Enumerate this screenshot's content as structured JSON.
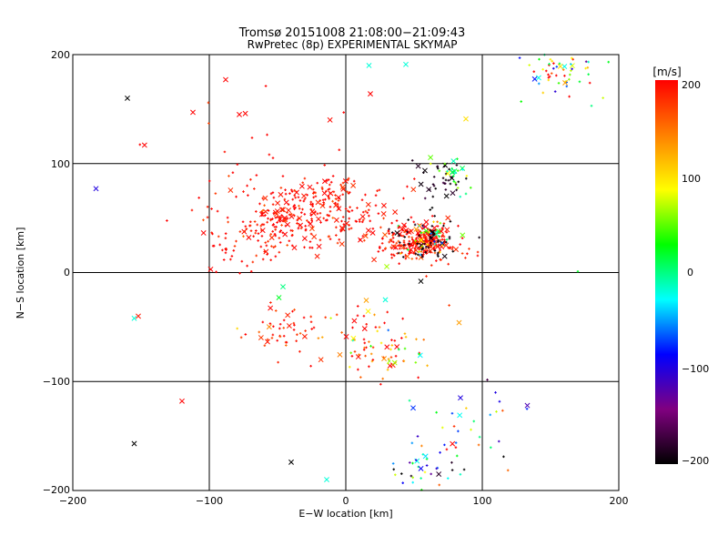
{
  "chart_data": {
    "type": "scatter",
    "title": "Tromsø 20151008 21:08:00−21:09:43",
    "subtitle": "RwPretec (8p) EXPERIMENTAL SKYMAP",
    "xlabel": "E−W location [km]",
    "ylabel": "N−S location [km]",
    "xlim": [
      -200,
      200
    ],
    "ylim": [
      -200,
      200
    ],
    "xticks": [
      "−200",
      "−100",
      "0",
      "100",
      "200"
    ],
    "yticks": [
      "200",
      "100",
      "0",
      "−100",
      "−200"
    ],
    "grid": true,
    "colorbar": {
      "label": "[m/s]",
      "range": [
        -200,
        200
      ],
      "ticks": [
        "200",
        "100",
        "0",
        "−100",
        "−200"
      ],
      "colormap": [
        "#000000",
        "#800080",
        "#0000ff",
        "#00ffff",
        "#00ff00",
        "#ffff00",
        "#ff8000",
        "#ff0000"
      ]
    },
    "clusters": [
      {
        "cx": 55,
        "cy": 28,
        "sx": 14,
        "sy": 8,
        "n": 260,
        "vmean": 195,
        "vsd": 20
      },
      {
        "cx": 60,
        "cy": 28,
        "sx": 12,
        "sy": 8,
        "n": 60,
        "vmean": -195,
        "vsd": 5
      },
      {
        "cx": 58,
        "cy": 32,
        "sx": 14,
        "sy": 10,
        "n": 40,
        "vmean": 60,
        "vsd": 80
      },
      {
        "cx": 72,
        "cy": 85,
        "sx": 10,
        "sy": 12,
        "n": 40,
        "vmean": -190,
        "vsd": 10
      },
      {
        "cx": 80,
        "cy": 90,
        "sx": 8,
        "sy": 8,
        "n": 25,
        "vmean": 40,
        "vsd": 60
      },
      {
        "cx": -45,
        "cy": 45,
        "sx": 14,
        "sy": 12,
        "n": 110,
        "vmean": 195,
        "vsd": 15
      },
      {
        "cx": 0,
        "cy": 50,
        "sx": 25,
        "sy": 15,
        "n": 120,
        "vmean": 195,
        "vsd": 15
      },
      {
        "cx": -20,
        "cy": 70,
        "sx": 15,
        "sy": 10,
        "n": 70,
        "vmean": 195,
        "vsd": 15
      },
      {
        "cx": -80,
        "cy": 35,
        "sx": 20,
        "sy": 20,
        "n": 60,
        "vmean": 195,
        "vsd": 15
      },
      {
        "cx": -55,
        "cy": 85,
        "sx": 40,
        "sy": 35,
        "n": 40,
        "vmean": 195,
        "vsd": 15
      },
      {
        "cx": -45,
        "cy": -50,
        "sx": 15,
        "sy": 12,
        "n": 50,
        "vmean": 190,
        "vsd": 25
      },
      {
        "cx": 15,
        "cy": -65,
        "sx": 25,
        "sy": 20,
        "n": 60,
        "vmean": 180,
        "vsd": 40
      },
      {
        "cx": 35,
        "cy": -75,
        "sx": 15,
        "sy": 10,
        "n": 25,
        "vmean": 90,
        "vsd": 60
      },
      {
        "cx": 160,
        "cy": 185,
        "sx": 15,
        "sy": 12,
        "n": 60,
        "vmean": 60,
        "vsd": 120
      },
      {
        "cx": 60,
        "cy": -185,
        "sx": 15,
        "sy": 12,
        "n": 35,
        "vmean": 0,
        "vsd": 120
      },
      {
        "cx": 95,
        "cy": -150,
        "sx": 25,
        "sy": 25,
        "n": 35,
        "vmean": 20,
        "vsd": 120
      }
    ],
    "points": [
      {
        "x": -183,
        "y": 77,
        "v": -100,
        "m": "x"
      },
      {
        "x": -155,
        "y": -42,
        "v": -20,
        "m": "x"
      },
      {
        "x": -152,
        "y": -40,
        "v": 190,
        "m": "x"
      },
      {
        "x": -155,
        "y": -157,
        "v": -200,
        "m": "x"
      },
      {
        "x": -120,
        "y": -118,
        "v": 200,
        "m": "x"
      },
      {
        "x": -112,
        "y": 147,
        "v": 200,
        "m": "x"
      },
      {
        "x": -88,
        "y": 177,
        "v": 200,
        "m": "x"
      },
      {
        "x": -78,
        "y": 145,
        "v": 200,
        "m": "x"
      },
      {
        "x": -160,
        "y": 160,
        "v": -200,
        "m": "x"
      },
      {
        "x": -40,
        "y": -174,
        "v": -200,
        "m": "x"
      },
      {
        "x": -14,
        "y": -190,
        "v": -20,
        "m": "x"
      },
      {
        "x": 17,
        "y": 190,
        "v": -20,
        "m": "x"
      },
      {
        "x": 44,
        "y": 191,
        "v": -20,
        "m": "x"
      },
      {
        "x": 18,
        "y": 164,
        "v": 200,
        "m": "x"
      },
      {
        "x": 88,
        "y": 141,
        "v": 100,
        "m": "x"
      },
      {
        "x": 133,
        "y": -122,
        "v": -120,
        "m": "x"
      },
      {
        "x": 84,
        "y": -115,
        "v": -100,
        "m": "x"
      },
      {
        "x": -99,
        "y": 3,
        "v": 200,
        "m": "x"
      },
      {
        "x": 55,
        "y": -8,
        "v": -200,
        "m": "x"
      },
      {
        "x": 29,
        "y": -25,
        "v": -20,
        "m": "x"
      },
      {
        "x": -46,
        "y": -13,
        "v": 0,
        "m": "x"
      },
      {
        "x": -49,
        "y": -23,
        "v": 20,
        "m": "x"
      },
      {
        "x": 83,
        "y": -46,
        "v": 130,
        "m": "x"
      },
      {
        "x": 180,
        "y": 153,
        "v": 0,
        "m": "+"
      },
      {
        "x": 170,
        "y": 1,
        "v": 20,
        "m": "+"
      }
    ]
  }
}
